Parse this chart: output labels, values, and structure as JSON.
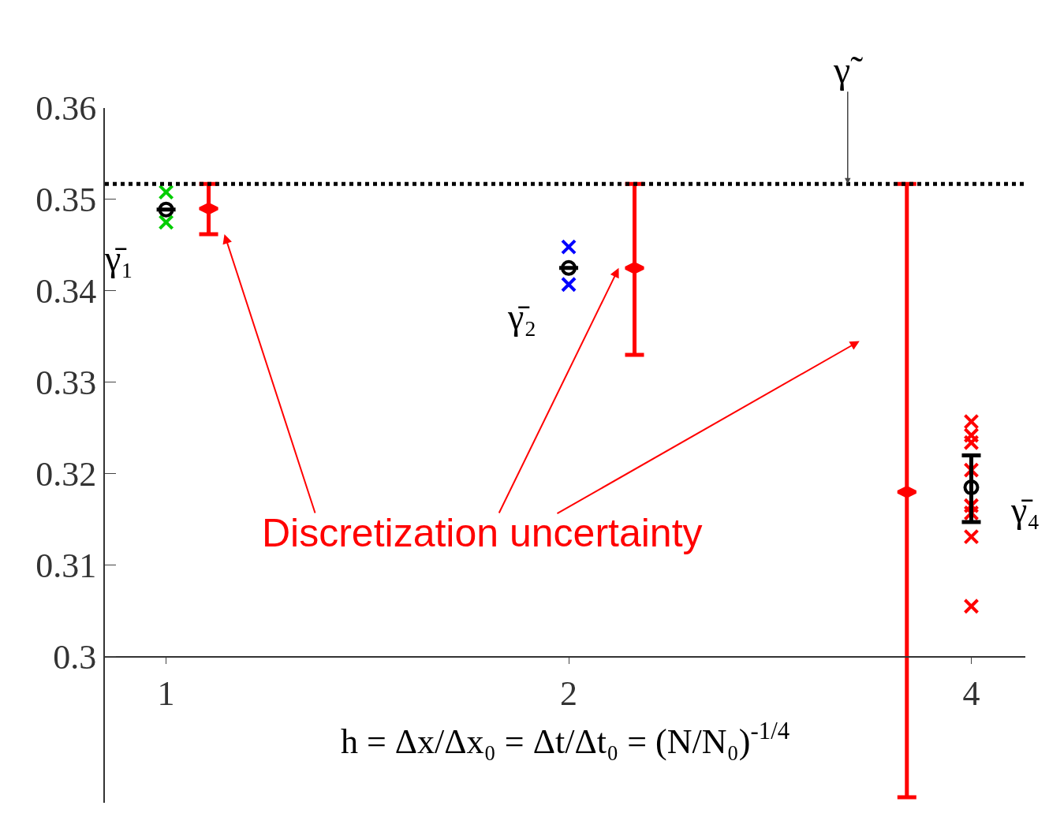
{
  "chart_data": {
    "type": "scatter",
    "xlabel": "h = Δx/Δx₀ = Δt/Δt₀ = (N/N₀)$^{-1/4}$",
    "log": "x",
    "xlim": [
      0.9,
      4.39
    ],
    "xticks": [
      1,
      2,
      4
    ],
    "ylim": [
      0.284,
      0.36
    ],
    "yticks": [
      0.3,
      0.31,
      0.32,
      0.33,
      0.34,
      0.35,
      0.36
    ],
    "grid": false,
    "series": [
      {
        "marker": "cross",
        "color": "#00cc00",
        "x": [
          1,
          1
        ],
        "values": [
          0.3508,
          0.3475
        ]
      },
      {
        "marker": "cross",
        "color": "#0000ff",
        "x": [
          2,
          2
        ],
        "values": [
          0.3448,
          0.3407
        ]
      },
      {
        "marker": "cross",
        "color": "#ff0000",
        "x": [
          4,
          4,
          4,
          4,
          4,
          4,
          4,
          4
        ],
        "values": [
          0.3257,
          0.3242,
          0.3234,
          0.3204,
          0.3165,
          0.3157,
          0.3131,
          0.3055
        ]
      },
      {
        "marker": "circle",
        "color": "#000000",
        "x": [
          1,
          2,
          4
        ],
        "values": [
          0.3489,
          0.3425,
          0.3185
        ],
        "errors": [
          null,
          null,
          [
            0.3147,
            0.322
          ]
        ]
      },
      {
        "marker": "diamond",
        "color": "#ff0000",
        "x": [
          1.076,
          2.24,
          3.58
        ],
        "values": [
          0.349,
          0.3425,
          0.318
        ],
        "errors": [
          [
            0.3462,
            0.3517
          ],
          [
            0.333,
            0.3517
          ],
          [
            0.2846,
            0.3517
          ]
        ]
      }
    ],
    "ref_lines": [
      {
        "axis": "y",
        "value": 0.3517,
        "label": "γ̃",
        "color": "#000000",
        "line_style": "dotted"
      }
    ],
    "annotations": [
      "γ̄₁",
      "γ̄₂",
      "γ̄₄",
      "Discretization uncertainty"
    ]
  }
}
